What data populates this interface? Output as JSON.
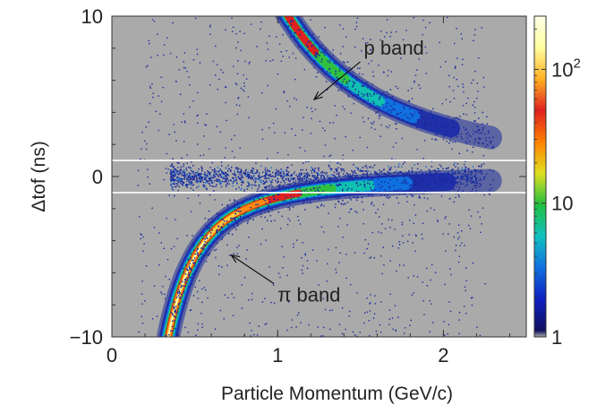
{
  "chart_data": {
    "type": "heatmap",
    "title": "",
    "xlabel": "Particle Momentum (GeV/c)",
    "ylabel": "Δtof (ns)",
    "xlim": [
      0,
      2.5
    ],
    "ylim": [
      -10,
      10
    ],
    "x_ticks": [
      {
        "value": 0,
        "label": "0"
      },
      {
        "value": 1,
        "label": "1"
      },
      {
        "value": 2,
        "label": "2"
      }
    ],
    "y_ticks": [
      {
        "value": -10,
        "label": "−10"
      },
      {
        "value": 0,
        "label": "0"
      },
      {
        "value": 10,
        "label": "10"
      }
    ],
    "background_color": "#aaaaaa",
    "cut_lines_y": [
      1,
      -1
    ],
    "cut_line_color": "#ffffff",
    "bands": [
      {
        "name": "p band",
        "sign": 1,
        "mass_gev": 0.938,
        "p_range": [
          0.45,
          2.3
        ]
      },
      {
        "name": "π band",
        "sign": -1,
        "mass_gev": 0.3,
        "p_range": [
          0.28,
          2.3
        ]
      }
    ],
    "colorbar": {
      "scale": "log",
      "range": [
        1,
        250
      ],
      "ticks": [
        {
          "value": 1,
          "label": "1"
        },
        {
          "value": 10,
          "label": "10"
        },
        {
          "value": 100,
          "label": "10",
          "exponent": "2"
        }
      ],
      "colors": [
        "#aaaaaa",
        "#101060",
        "#1020c0",
        "#1070e0",
        "#10c0c0",
        "#20c040",
        "#e0e020",
        "#ff8000",
        "#e02020",
        "#ffb020",
        "#ffffa0",
        "#ffffe8"
      ]
    },
    "annotations": [
      {
        "text": "p band",
        "x": 1.52,
        "y": 7.6,
        "arrow_to": [
          1.22,
          4.8
        ]
      },
      {
        "text": "π band",
        "x": 1.0,
        "y": -7.8,
        "arrow_to": [
          0.72,
          -4.9
        ]
      }
    ]
  }
}
